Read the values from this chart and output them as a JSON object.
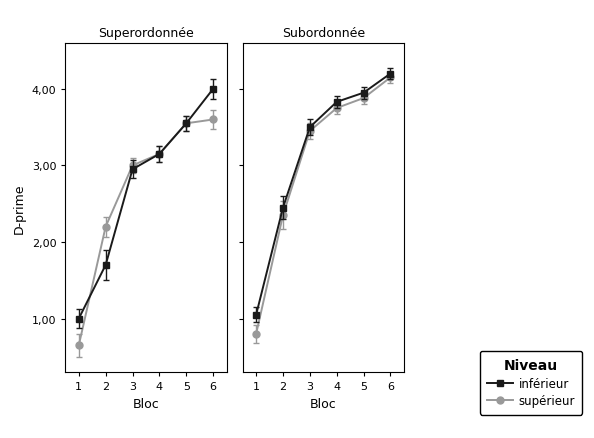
{
  "superordonnee": {
    "title": "Superordonnée",
    "inferieur_y": [
      1.0,
      1.7,
      2.95,
      3.15,
      3.55,
      4.0
    ],
    "inferieur_err": [
      0.12,
      0.2,
      0.12,
      0.1,
      0.1,
      0.13
    ],
    "superieur_y": [
      0.65,
      2.2,
      3.0,
      3.15,
      3.55,
      3.6
    ],
    "superieur_err": [
      0.15,
      0.13,
      0.1,
      0.1,
      0.1,
      0.12
    ]
  },
  "subordonnee": {
    "title": "Subordonnée",
    "inferieur_y": [
      1.05,
      2.45,
      3.5,
      3.83,
      3.95,
      4.2
    ],
    "inferieur_err": [
      0.1,
      0.15,
      0.1,
      0.08,
      0.08,
      0.07
    ],
    "superieur_y": [
      0.8,
      2.35,
      3.45,
      3.75,
      3.88,
      4.15
    ],
    "superieur_err": [
      0.12,
      0.18,
      0.1,
      0.08,
      0.08,
      0.07
    ]
  },
  "x": [
    1,
    2,
    3,
    4,
    5,
    6
  ],
  "xlabel": "Bloc",
  "ylabel": "D-prime",
  "ylim": [
    0.3,
    4.6
  ],
  "yticks": [
    1.0,
    2.0,
    3.0,
    4.0
  ],
  "ytick_labels": [
    "1,00",
    "2,00",
    "3,00",
    "4,00"
  ],
  "xticks": [
    1,
    2,
    3,
    4,
    5,
    6
  ],
  "legend_title": "Niveau",
  "legend_inferieur": "inférieur",
  "legend_superieur": "supérieur",
  "color_inferieur": "#1a1a1a",
  "color_superieur": "#999999",
  "background_color": "#ffffff",
  "figure_background": "#ffffff"
}
